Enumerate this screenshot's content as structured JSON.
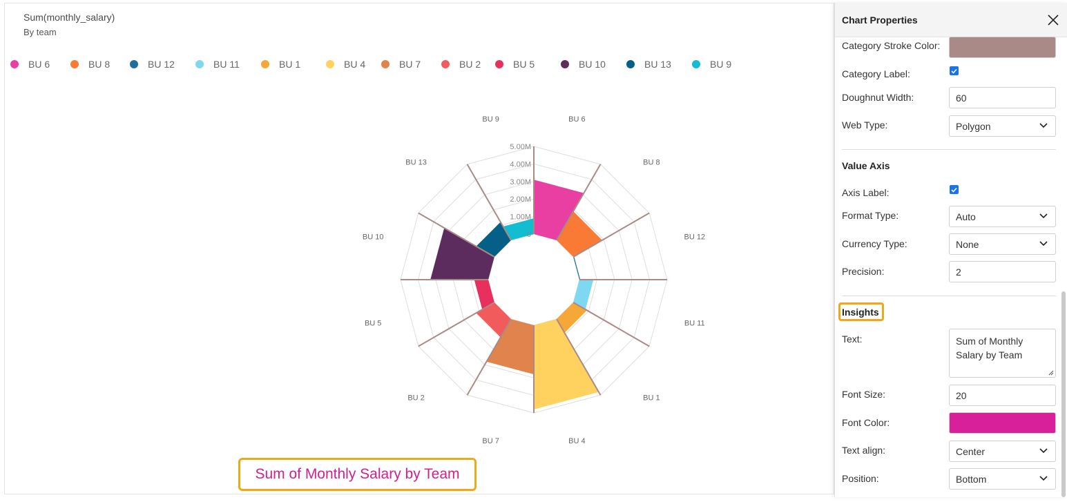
{
  "chart": {
    "title": "Sum(monthly_salary)",
    "subtitle": "By team",
    "insight_text": "Sum of Monthly Salary by Team"
  },
  "chart_data": {
    "type": "radar",
    "web_type": "polygon",
    "categories": [
      "BU 6",
      "BU 8",
      "BU 12",
      "BU 11",
      "BU 1",
      "BU 4",
      "BU 7",
      "BU 2",
      "BU 5",
      "BU 10",
      "BU 13",
      "BU 9"
    ],
    "legend": [
      "BU 6",
      "BU 8",
      "BU 12",
      "BU 11",
      "BU 1",
      "BU 4",
      "BU 7",
      "BU 2",
      "BU 5",
      "BU 10",
      "BU 13",
      "BU 9"
    ],
    "colors": [
      "#e93fa3",
      "#f97a35",
      "#1f6f9e",
      "#7fd8f2",
      "#f5a737",
      "#ffd15e",
      "#e0834c",
      "#f25b5b",
      "#e8305f",
      "#5d2c5e",
      "#055f86",
      "#12bcd1"
    ],
    "values": [
      3.1,
      1.9,
      0.05,
      0.8,
      0.9,
      4.8,
      2.8,
      1.2,
      0.8,
      3.3,
      1.2,
      0.9
    ],
    "value_axis_ticks": [
      "0",
      "1.00M",
      "2.00M",
      "3.00M",
      "4.00M",
      "5.00M"
    ],
    "ylim": [
      0,
      5
    ],
    "stroke_color": "#a98a87"
  },
  "panel": {
    "title": "Chart Properties",
    "category_stroke_color_label": "Category Stroke Color:",
    "category_stroke_color": "#a98a87",
    "category_label_label": "Category Label:",
    "doughnut_width_label": "Doughnut Width:",
    "doughnut_width": "60",
    "web_type_label": "Web Type:",
    "web_type": "Polygon",
    "value_axis_title": "Value Axis",
    "axis_label_label": "Axis Label:",
    "format_type_label": "Format Type:",
    "format_type": "Auto",
    "currency_type_label": "Currency Type:",
    "currency_type": "None",
    "precision_label": "Precision:",
    "precision": "2",
    "insights_title": "Insights",
    "text_label": "Text:",
    "text_value": "Sum of Monthly Salary by Team",
    "font_size_label": "Font Size:",
    "font_size": "20",
    "font_color_label": "Font Color:",
    "font_color": "#d9209b",
    "text_align_label": "Text align:",
    "text_align": "Center",
    "position_label": "Position:",
    "position": "Bottom"
  }
}
